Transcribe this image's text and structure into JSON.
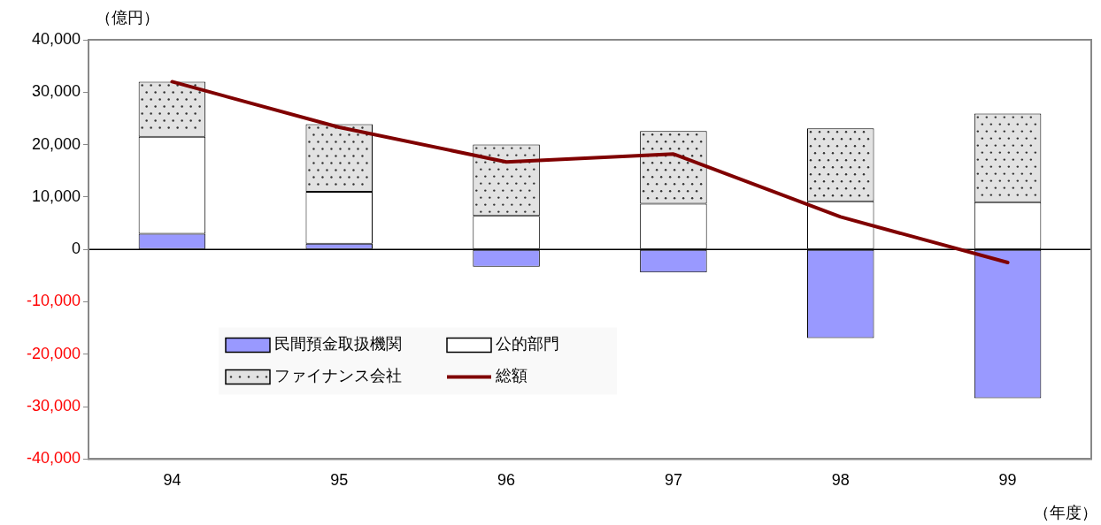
{
  "chart_data": {
    "type": "bar",
    "stacked": true,
    "ylabel": "（億円）",
    "xlabel": "（年度）",
    "categories": [
      "94",
      "95",
      "96",
      "97",
      "98",
      "99"
    ],
    "series": [
      {
        "name": "民間預金取扱機関",
        "color": "#9999ff",
        "values": [
          3000,
          1100,
          -3300,
          -4400,
          -16900,
          -28400
        ]
      },
      {
        "name": "公的部門",
        "color": "#ffffff",
        "values": [
          18500,
          9900,
          6400,
          8700,
          9200,
          9000
        ]
      },
      {
        "name": "ファイナンス会社",
        "color": "#e2e2e2",
        "values": [
          10500,
          12900,
          13600,
          13900,
          13900,
          16900
        ]
      },
      {
        "name": "総額",
        "type": "line",
        "color": "#800000",
        "values": [
          32000,
          23300,
          16700,
          18200,
          6200,
          -2500
        ]
      }
    ],
    "ylim": [
      -40000,
      40000
    ],
    "yticks": [
      {
        "value": -40000,
        "label": "-40,000"
      },
      {
        "value": -30000,
        "label": "-30,000"
      },
      {
        "value": -20000,
        "label": "-20,000"
      },
      {
        "value": -10000,
        "label": "-10,000"
      },
      {
        "value": 0,
        "label": "0"
      },
      {
        "value": 10000,
        "label": "10,000"
      },
      {
        "value": 20000,
        "label": "20,000"
      },
      {
        "value": 30000,
        "label": "30,000"
      },
      {
        "value": 40000,
        "label": "40,000"
      }
    ],
    "ref_lines": [
      {
        "axis": "y",
        "value": 0,
        "color": "#000000"
      }
    ],
    "grid": false,
    "legend": "bottom left",
    "marker": "none",
    "line_style": "solid"
  }
}
